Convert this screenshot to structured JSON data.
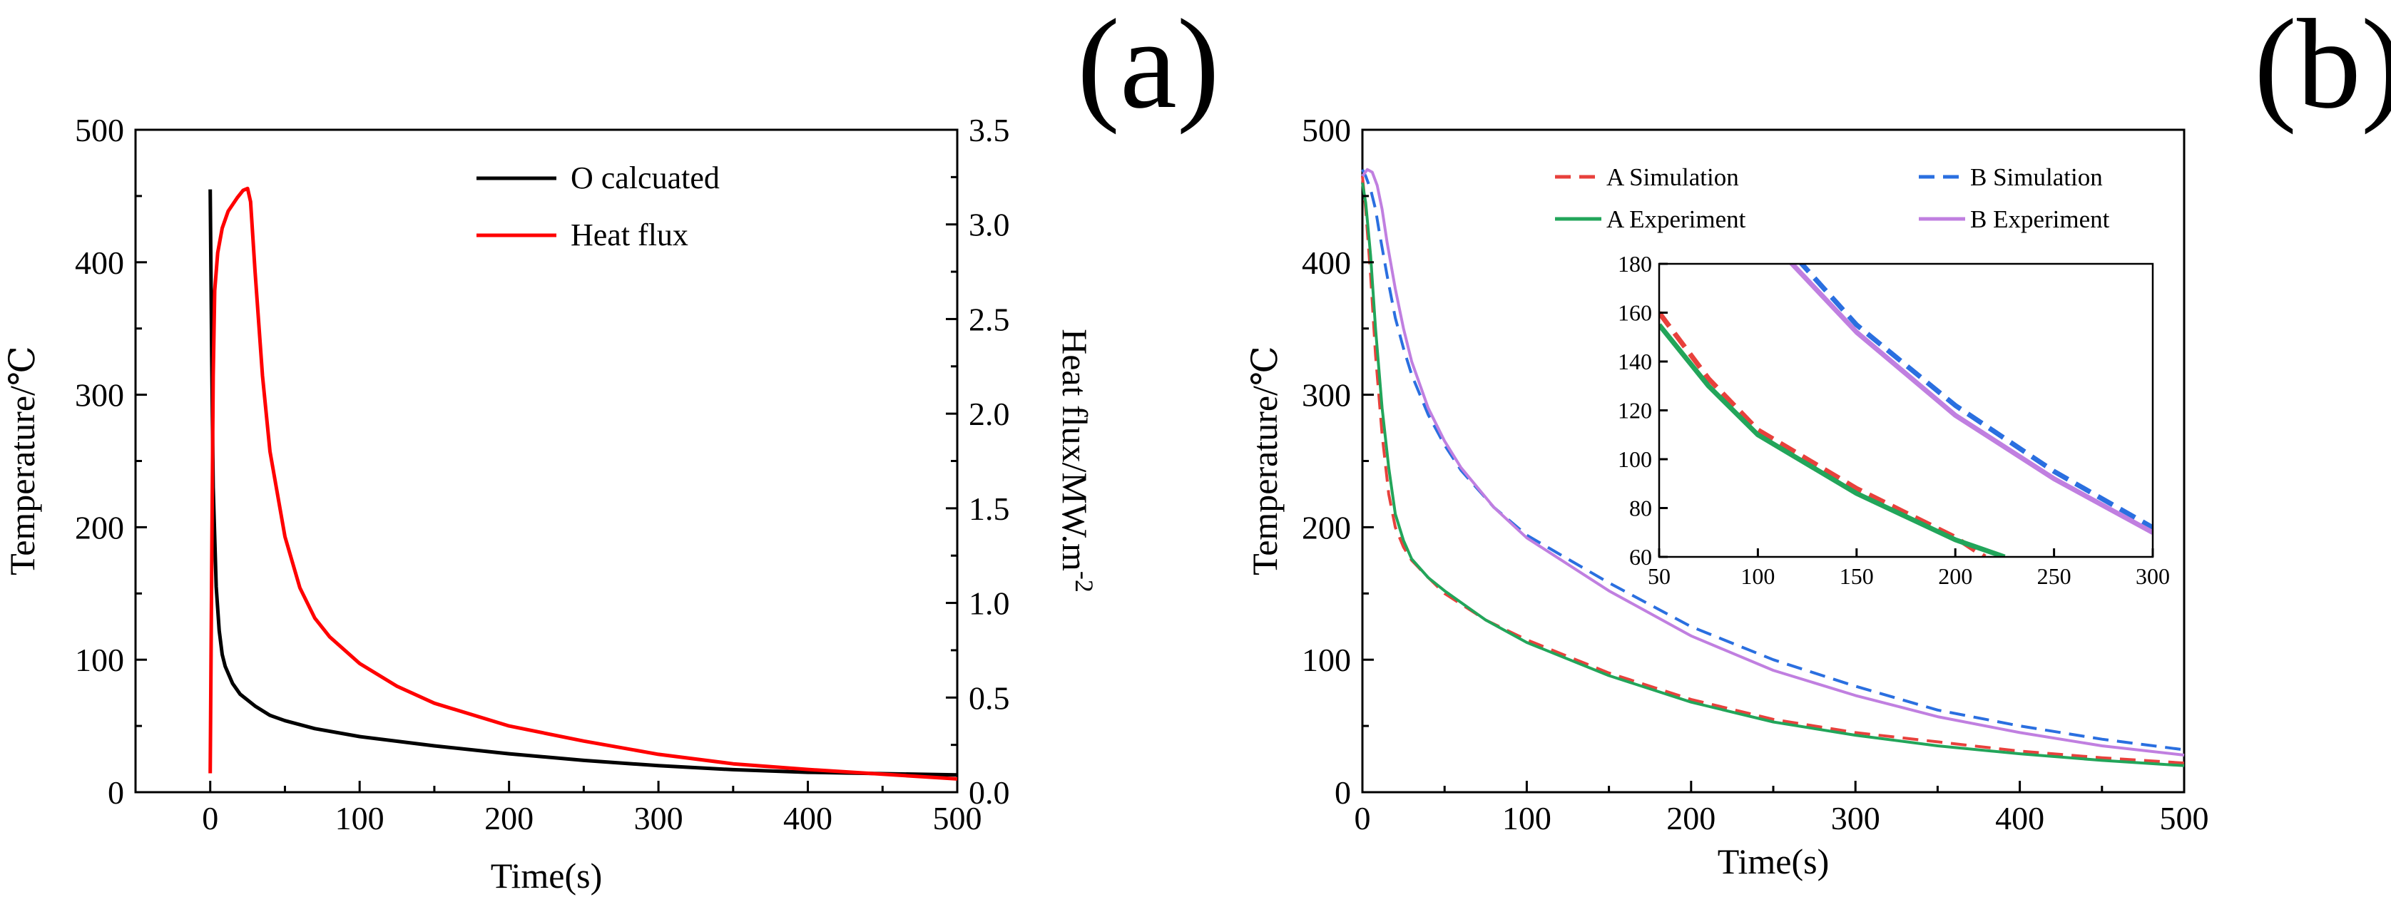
{
  "panel_labels": {
    "a": "(a)",
    "b": "(b)"
  },
  "chart_data": [
    {
      "id": "a",
      "type": "line",
      "xlabel": "Time(s)",
      "ylabel": "Temperature/℃",
      "ylabel2": "Heat flux/MW.m",
      "ylabel2_sup": "-2",
      "xlim": [
        -50,
        500
      ],
      "ylim": [
        0,
        500
      ],
      "y2lim": [
        0,
        3.5
      ],
      "xticks": [
        "0",
        "100",
        "200",
        "300",
        "400",
        "500"
      ],
      "yticks": [
        "0",
        "100",
        "200",
        "300",
        "400",
        "500"
      ],
      "y2ticks": [
        "0.0",
        "0.5",
        "1.0",
        "1.5",
        "2.0",
        "2.5",
        "3.0",
        "3.5"
      ],
      "series": [
        {
          "name": "O calcuated",
          "color": "#000000",
          "axis": "left",
          "x": [
            0,
            1,
            2,
            4,
            6,
            8,
            10,
            15,
            20,
            30,
            40,
            50,
            70,
            100,
            150,
            200,
            250,
            300,
            350,
            400,
            450,
            500
          ],
          "y": [
            455,
            330,
            230,
            155,
            122,
            104,
            95,
            82,
            74,
            65,
            58,
            54,
            48,
            42,
            35,
            29,
            24,
            20,
            17,
            15,
            14,
            13
          ]
        },
        {
          "name": "Heat flux",
          "color": "#ff0000",
          "axis": "right",
          "x": [
            0,
            1,
            2,
            3,
            5,
            8,
            12,
            18,
            22,
            25,
            27,
            30,
            35,
            40,
            50,
            60,
            70,
            80,
            100,
            125,
            150,
            200,
            250,
            300,
            350,
            400,
            450,
            500
          ],
          "y": [
            0.1,
            1.2,
            2.2,
            2.65,
            2.85,
            2.98,
            3.07,
            3.14,
            3.18,
            3.19,
            3.12,
            2.75,
            2.2,
            1.8,
            1.35,
            1.08,
            0.92,
            0.82,
            0.68,
            0.56,
            0.47,
            0.35,
            0.27,
            0.2,
            0.15,
            0.12,
            0.095,
            0.07
          ]
        }
      ]
    },
    {
      "id": "b",
      "type": "line",
      "xlabel": "Time(s)",
      "ylabel": "Temperature/℃",
      "xlim": [
        0,
        500
      ],
      "ylim": [
        0,
        500
      ],
      "xticks": [
        "0",
        "100",
        "200",
        "300",
        "400",
        "500"
      ],
      "yticks": [
        "0",
        "100",
        "200",
        "300",
        "400",
        "500"
      ],
      "series": [
        {
          "name": "A Simulation",
          "color": "#e8413c",
          "dash": true,
          "x": [
            0,
            2,
            5,
            8,
            12,
            16,
            20,
            25,
            30,
            40,
            50,
            75,
            100,
            150,
            200,
            250,
            300,
            350,
            400,
            450,
            500
          ],
          "y": [
            465,
            440,
            390,
            330,
            270,
            225,
            200,
            185,
            175,
            162,
            150,
            130,
            115,
            90,
            70,
            55,
            45,
            38,
            31,
            26,
            22
          ]
        },
        {
          "name": "B Simulation",
          "color": "#2a6fe0",
          "dash": true,
          "x": [
            0,
            2,
            5,
            8,
            10,
            15,
            20,
            25,
            30,
            40,
            50,
            60,
            80,
            100,
            150,
            200,
            250,
            300,
            350,
            400,
            450,
            500
          ],
          "y": [
            470,
            465,
            455,
            440,
            425,
            390,
            358,
            335,
            315,
            285,
            262,
            243,
            215,
            194,
            158,
            125,
            100,
            80,
            62,
            50,
            40,
            32
          ]
        },
        {
          "name": "A Experiment",
          "color": "#22a55a",
          "dash": false,
          "x": [
            0,
            2,
            5,
            8,
            12,
            16,
            20,
            25,
            30,
            40,
            50,
            75,
            100,
            150,
            200,
            250,
            300,
            350,
            400,
            450,
            500
          ],
          "y": [
            460,
            445,
            405,
            350,
            290,
            245,
            210,
            190,
            176,
            162,
            152,
            130,
            113,
            88,
            68,
            53,
            43,
            35,
            29,
            24,
            20
          ]
        },
        {
          "name": "B Experiment",
          "color": "#c07fe0",
          "dash": false,
          "x": [
            0,
            3,
            6,
            9,
            12,
            15,
            20,
            25,
            30,
            40,
            50,
            60,
            80,
            100,
            150,
            200,
            250,
            300,
            350,
            400,
            450,
            500
          ],
          "y": [
            465,
            470,
            468,
            458,
            440,
            415,
            380,
            350,
            325,
            290,
            265,
            245,
            215,
            192,
            152,
            118,
            92,
            73,
            57,
            45,
            35,
            28
          ]
        }
      ],
      "inset": {
        "xlim": [
          50,
          300
        ],
        "ylim": [
          60,
          180
        ],
        "xticks": [
          "50",
          "100",
          "150",
          "200",
          "250",
          "300"
        ],
        "yticks": [
          "60",
          "80",
          "100",
          "120",
          "140",
          "160",
          "180"
        ],
        "series": [
          {
            "ref": "A Simulation",
            "x": [
              50,
              75,
              100,
              150,
              200,
              215
            ],
            "y": [
              160,
              133,
              112,
              88,
              68,
              60
            ]
          },
          {
            "ref": "B Simulation",
            "x": [
              120,
              150,
              200,
              250,
              300
            ],
            "y": [
              182,
              155,
              122,
              95,
              72
            ]
          },
          {
            "ref": "A Experiment",
            "x": [
              50,
              75,
              100,
              150,
              200,
              225
            ],
            "y": [
              155,
              130,
              110,
              86,
              67,
              60
            ]
          },
          {
            "ref": "B Experiment",
            "x": [
              115,
              150,
              200,
              250,
              300
            ],
            "y": [
              182,
              152,
              118,
              92,
              70
            ]
          }
        ]
      }
    }
  ]
}
